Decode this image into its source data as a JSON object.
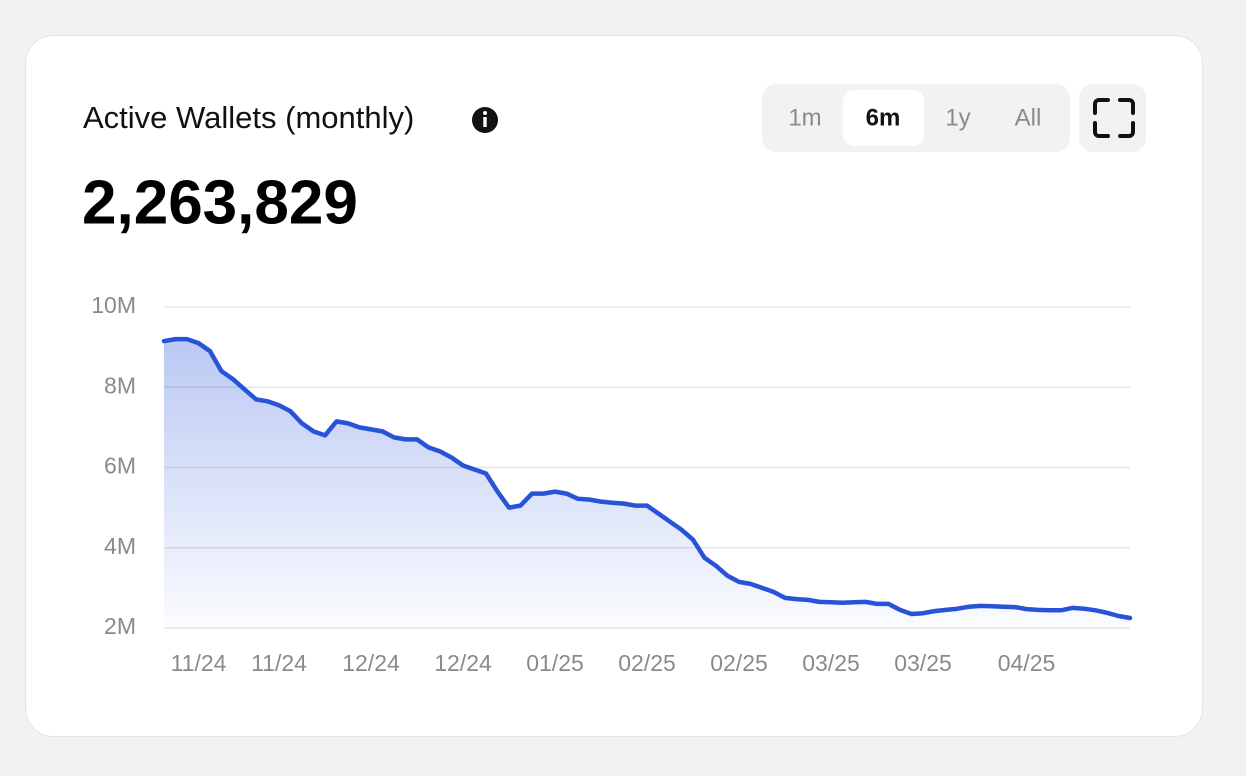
{
  "chart_data": {
    "type": "area",
    "title": "Active Wallets (monthly)",
    "headline": "2,263,829",
    "controls": {
      "ranges": [
        "1m",
        "6m",
        "1y",
        "All"
      ],
      "selected": 1
    },
    "categories": [
      null,
      null,
      null,
      "11/24",
      null,
      null,
      null,
      null,
      null,
      null,
      "11/24",
      null,
      null,
      null,
      null,
      null,
      null,
      null,
      "12/24",
      null,
      null,
      null,
      null,
      null,
      null,
      null,
      "12/24",
      null,
      null,
      null,
      null,
      null,
      null,
      null,
      "01/25",
      null,
      null,
      null,
      null,
      null,
      null,
      null,
      "02/25",
      null,
      null,
      null,
      null,
      null,
      null,
      null,
      "02/25",
      null,
      null,
      null,
      null,
      null,
      null,
      null,
      "03/25",
      null,
      null,
      null,
      null,
      null,
      null,
      null,
      "03/25",
      null,
      null,
      null,
      null,
      null,
      null,
      null,
      null,
      "04/25",
      null,
      null,
      null,
      null,
      null,
      null,
      null,
      null,
      null
    ],
    "values": [
      9150000,
      9200000,
      9200000,
      9100000,
      8900000,
      8400000,
      8200000,
      7950000,
      7700000,
      7650000,
      7550000,
      7400000,
      7100000,
      6900000,
      6800000,
      7150000,
      7100000,
      7000000,
      6950000,
      6900000,
      6750000,
      6700000,
      6700000,
      6500000,
      6400000,
      6250000,
      6050000,
      5950000,
      5850000,
      5400000,
      5000000,
      5050000,
      5350000,
      5350000,
      5400000,
      5350000,
      5220000,
      5200000,
      5150000,
      5120000,
      5100000,
      5050000,
      5050000,
      4850000,
      4650000,
      4450000,
      4200000,
      3750000,
      3550000,
      3300000,
      3150000,
      3100000,
      3000000,
      2900000,
      2750000,
      2720000,
      2700000,
      2650000,
      2640000,
      2630000,
      2640000,
      2650000,
      2600000,
      2600000,
      2450000,
      2350000,
      2370000,
      2420000,
      2450000,
      2480000,
      2530000,
      2550000,
      2540000,
      2530000,
      2520000,
      2470000,
      2450000,
      2440000,
      2440000,
      2500000,
      2480000,
      2440000,
      2380000,
      2300000,
      2250000
    ],
    "color": "#2753d9",
    "ylim": [
      2000000,
      10000000
    ],
    "yticks": [
      {
        "value": 2000000,
        "label": "2M"
      },
      {
        "value": 4000000,
        "label": "4M"
      },
      {
        "value": 6000000,
        "label": "6M"
      },
      {
        "value": 8000000,
        "label": "8M"
      },
      {
        "value": 10000000,
        "label": "10M"
      }
    ],
    "grid": true
  }
}
